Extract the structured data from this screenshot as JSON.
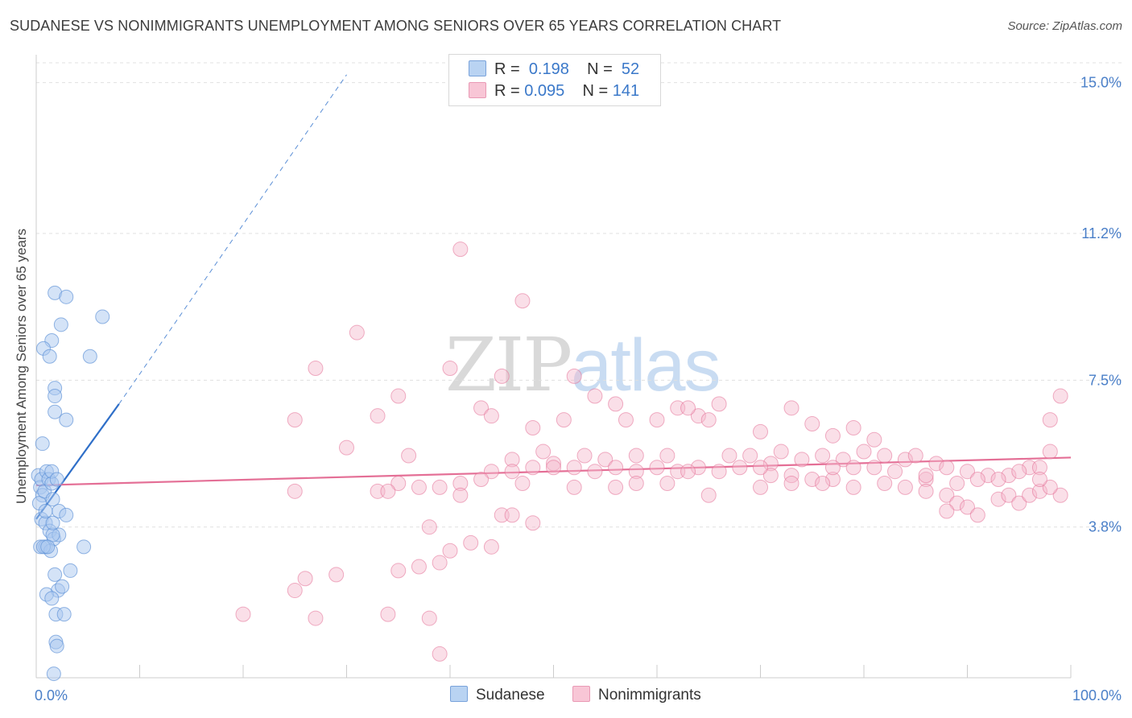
{
  "title": "SUDANESE VS NONIMMIGRANTS UNEMPLOYMENT AMONG SENIORS OVER 65 YEARS CORRELATION CHART",
  "source": "Source: ZipAtlas.com",
  "watermark": {
    "part1": "ZIP",
    "part2": "atlas"
  },
  "colors": {
    "sudanese": "#5b8fd6",
    "sudanese_fill": "#a9c8ef",
    "nonimmigrants": "#e46f96",
    "nonimmigrants_fill": "#f5b9cc",
    "tick": "#4a7fc8"
  },
  "legend": {
    "rows": [
      {
        "r_label": "R =",
        "r_value": "0.198",
        "n_label": "N =",
        "n_value": "52"
      },
      {
        "r_label": "R =",
        "r_value": "0.095",
        "n_label": "N =",
        "n_value": "141"
      }
    ]
  },
  "chart_data": {
    "type": "scatter",
    "title": "SUDANESE VS NONIMMIGRANTS UNEMPLOYMENT AMONG SENIORS OVER 65 YEARS CORRELATION CHART",
    "xlabel": "",
    "ylabel": "Unemployment Among Seniors over 65 years",
    "xlim": [
      0,
      100
    ],
    "ylim": [
      0,
      15.5
    ],
    "x_tick_labels": [
      "0.0%",
      "100.0%"
    ],
    "y_ticks": [
      3.8,
      7.5,
      11.2,
      15.0
    ],
    "y_tick_labels": [
      "3.8%",
      "7.5%",
      "11.2%",
      "15.0%"
    ],
    "grid": "horizontal dashed",
    "legend_position": "top-center",
    "series": [
      {
        "name": "Sudanese",
        "R": 0.198,
        "N": 52,
        "trend": {
          "x": [
            0,
            8
          ],
          "y": [
            4.0,
            6.9
          ],
          "extended_to": [
            30,
            15.2
          ]
        },
        "points": [
          [
            0.2,
            5.1
          ],
          [
            0.4,
            4.8
          ],
          [
            0.6,
            4.6
          ],
          [
            0.3,
            4.4
          ],
          [
            0.5,
            5.0
          ],
          [
            0.8,
            4.7
          ],
          [
            1.0,
            5.2
          ],
          [
            1.2,
            5.0
          ],
          [
            1.5,
            4.9
          ],
          [
            1.6,
            4.5
          ],
          [
            0.5,
            4.0
          ],
          [
            0.9,
            3.9
          ],
          [
            1.3,
            3.7
          ],
          [
            1.7,
            3.5
          ],
          [
            2.2,
            4.2
          ],
          [
            2.9,
            4.1
          ],
          [
            0.4,
            3.3
          ],
          [
            0.9,
            3.3
          ],
          [
            1.4,
            3.2
          ],
          [
            2.2,
            3.6
          ],
          [
            4.6,
            3.3
          ],
          [
            1.8,
            2.6
          ],
          [
            2.1,
            2.2
          ],
          [
            3.3,
            2.7
          ],
          [
            1.0,
            2.1
          ],
          [
            1.5,
            2.0
          ],
          [
            1.9,
            1.6
          ],
          [
            2.7,
            1.6
          ],
          [
            1.9,
            0.9
          ],
          [
            2.0,
            0.8
          ],
          [
            1.7,
            0.1
          ],
          [
            1.8,
            9.7
          ],
          [
            2.9,
            9.6
          ],
          [
            6.4,
            9.1
          ],
          [
            2.4,
            8.9
          ],
          [
            1.5,
            8.5
          ],
          [
            0.7,
            8.3
          ],
          [
            1.3,
            8.1
          ],
          [
            5.2,
            8.1
          ],
          [
            1.8,
            7.3
          ],
          [
            1.8,
            7.1
          ],
          [
            1.8,
            6.7
          ],
          [
            2.9,
            6.5
          ],
          [
            0.6,
            5.9
          ],
          [
            1.5,
            5.2
          ],
          [
            2.0,
            5.0
          ],
          [
            0.9,
            4.2
          ],
          [
            1.6,
            3.6
          ],
          [
            0.7,
            3.3
          ],
          [
            1.1,
            3.3
          ],
          [
            2.5,
            2.3
          ],
          [
            1.6,
            3.9
          ]
        ]
      },
      {
        "name": "Nonimmigrants",
        "R": 0.095,
        "N": 141,
        "trend": {
          "x": [
            0,
            100
          ],
          "y": [
            4.85,
            5.55
          ]
        },
        "points": [
          [
            41,
            10.8
          ],
          [
            47,
            9.5
          ],
          [
            31,
            8.7
          ],
          [
            27,
            7.8
          ],
          [
            40,
            7.8
          ],
          [
            45,
            7.6
          ],
          [
            52,
            7.6
          ],
          [
            54,
            7.1
          ],
          [
            35,
            7.1
          ],
          [
            43,
            6.8
          ],
          [
            56,
            6.9
          ],
          [
            44,
            6.6
          ],
          [
            33,
            6.6
          ],
          [
            25,
            6.5
          ],
          [
            48,
            6.3
          ],
          [
            51,
            6.5
          ],
          [
            57,
            6.5
          ],
          [
            60,
            6.5
          ],
          [
            62,
            6.8
          ],
          [
            64,
            6.6
          ],
          [
            65,
            6.5
          ],
          [
            63,
            6.8
          ],
          [
            66,
            6.9
          ],
          [
            70,
            6.2
          ],
          [
            73,
            6.8
          ],
          [
            75,
            6.4
          ],
          [
            77,
            6.1
          ],
          [
            79,
            6.3
          ],
          [
            81,
            6.0
          ],
          [
            30,
            5.8
          ],
          [
            36,
            5.6
          ],
          [
            46,
            5.5
          ],
          [
            49,
            5.7
          ],
          [
            50,
            5.4
          ],
          [
            53,
            5.6
          ],
          [
            55,
            5.5
          ],
          [
            58,
            5.6
          ],
          [
            61,
            5.6
          ],
          [
            67,
            5.6
          ],
          [
            69,
            5.6
          ],
          [
            71,
            5.4
          ],
          [
            72,
            5.7
          ],
          [
            74,
            5.5
          ],
          [
            76,
            5.6
          ],
          [
            78,
            5.5
          ],
          [
            80,
            5.7
          ],
          [
            82,
            5.6
          ],
          [
            84,
            5.5
          ],
          [
            85,
            5.6
          ],
          [
            87,
            5.4
          ],
          [
            88,
            5.3
          ],
          [
            90,
            5.2
          ],
          [
            92,
            5.1
          ],
          [
            94,
            5.1
          ],
          [
            96,
            5.3
          ],
          [
            98,
            5.7
          ],
          [
            99,
            7.1
          ],
          [
            98,
            6.5
          ],
          [
            97,
            5.3
          ],
          [
            95,
            5.2
          ],
          [
            93,
            5.0
          ],
          [
            91,
            5.0
          ],
          [
            89,
            4.9
          ],
          [
            86,
            5.0
          ],
          [
            83,
            5.2
          ],
          [
            81,
            5.3
          ],
          [
            79,
            5.3
          ],
          [
            77,
            5.0
          ],
          [
            75,
            5.0
          ],
          [
            73,
            5.1
          ],
          [
            71,
            5.1
          ],
          [
            68,
            5.3
          ],
          [
            66,
            5.2
          ],
          [
            64,
            5.3
          ],
          [
            62,
            5.2
          ],
          [
            60,
            5.3
          ],
          [
            58,
            5.2
          ],
          [
            56,
            5.3
          ],
          [
            54,
            5.2
          ],
          [
            52,
            5.3
          ],
          [
            50,
            5.3
          ],
          [
            48,
            5.3
          ],
          [
            46,
            5.2
          ],
          [
            44,
            5.2
          ],
          [
            43,
            5.0
          ],
          [
            41,
            4.9
          ],
          [
            39,
            4.8
          ],
          [
            37,
            4.8
          ],
          [
            35,
            4.9
          ],
          [
            25,
            4.7
          ],
          [
            33,
            4.7
          ],
          [
            34,
            4.7
          ],
          [
            41,
            4.6
          ],
          [
            47,
            4.9
          ],
          [
            52,
            4.8
          ],
          [
            56,
            4.8
          ],
          [
            58,
            4.9
          ],
          [
            61,
            4.9
          ],
          [
            65,
            4.6
          ],
          [
            70,
            4.8
          ],
          [
            73,
            4.9
          ],
          [
            76,
            4.9
          ],
          [
            79,
            4.8
          ],
          [
            82,
            4.9
          ],
          [
            84,
            4.8
          ],
          [
            86,
            4.7
          ],
          [
            88,
            4.6
          ],
          [
            89,
            4.4
          ],
          [
            90,
            4.3
          ],
          [
            91,
            4.1
          ],
          [
            93,
            4.5
          ],
          [
            94,
            4.6
          ],
          [
            95,
            4.4
          ],
          [
            96,
            4.6
          ],
          [
            97,
            4.7
          ],
          [
            99,
            4.6
          ],
          [
            98,
            4.8
          ],
          [
            97,
            5.0
          ],
          [
            45,
            4.1
          ],
          [
            46,
            4.1
          ],
          [
            48,
            3.9
          ],
          [
            38,
            3.8
          ],
          [
            42,
            3.4
          ],
          [
            44,
            3.3
          ],
          [
            40,
            3.2
          ],
          [
            37,
            2.8
          ],
          [
            39,
            2.9
          ],
          [
            35,
            2.7
          ],
          [
            29,
            2.6
          ],
          [
            26,
            2.5
          ],
          [
            25,
            2.2
          ],
          [
            20,
            1.6
          ],
          [
            27,
            1.5
          ],
          [
            34,
            1.6
          ],
          [
            38,
            1.5
          ],
          [
            39,
            0.6
          ],
          [
            88,
            4.2
          ],
          [
            63,
            5.2
          ],
          [
            70,
            5.3
          ],
          [
            77,
            5.3
          ],
          [
            86,
            5.1
          ]
        ]
      }
    ]
  }
}
